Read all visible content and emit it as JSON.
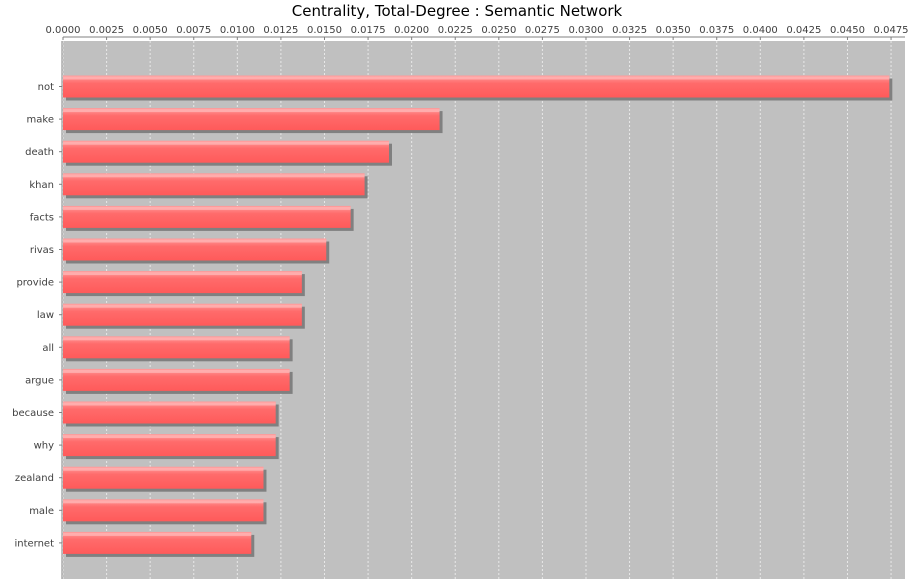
{
  "chart_data": {
    "type": "bar",
    "orientation": "horizontal",
    "title": "Centrality, Total-Degree : Semantic Network",
    "xlabel": "",
    "ylabel": "",
    "xlim": [
      0,
      0.0483
    ],
    "x_tick_labels": [
      "0.0000",
      "0.0025",
      "0.0050",
      "0.0075",
      "0.0100",
      "0.0125",
      "0.0150",
      "0.0175",
      "0.0200",
      "0.0225",
      "0.0250",
      "0.0275",
      "0.0300",
      "0.0325",
      "0.0350",
      "0.0375",
      "0.0400",
      "0.0425",
      "0.0450",
      "0.0475"
    ],
    "x_axis_position": "top",
    "grid": true,
    "categories": [
      "not",
      "make",
      "death",
      "khan",
      "facts",
      "rivas",
      "provide",
      "law",
      "all",
      "argue",
      "because",
      "why",
      "zealand",
      "male",
      "internet"
    ],
    "values": [
      0.0474,
      0.0216,
      0.0187,
      0.0173,
      0.0165,
      0.0151,
      0.0137,
      0.0137,
      0.013,
      0.013,
      0.0122,
      0.0122,
      0.0115,
      0.0115,
      0.0108
    ],
    "colors": {
      "bar": "#ff6a6a",
      "bar_highlight": "#ffb0b0",
      "bar_shadow": "#808080",
      "plot_background": "#c0c0c0",
      "gridline": "#e8e8e8"
    }
  }
}
